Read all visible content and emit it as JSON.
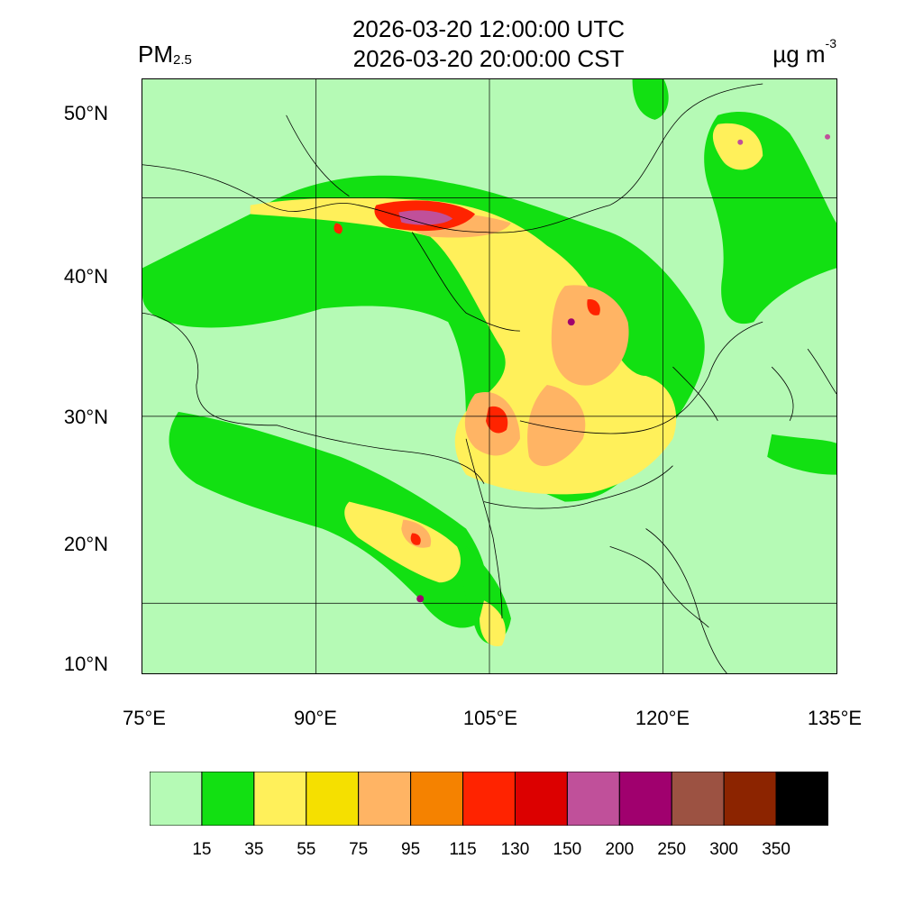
{
  "header": {
    "time_utc": "2026-03-20 12:00:00 UTC",
    "time_local": "2026-03-20 20:00:00 CST",
    "variable_main": "PM",
    "variable_sub": "2.5",
    "unit_main": "µg m",
    "unit_exp": "-3"
  },
  "axes": {
    "lat_labels": [
      "50°N",
      "40°N",
      "30°N",
      "20°N",
      "10°N"
    ],
    "lon_labels": [
      "75°E",
      "90°E",
      "105°E",
      "120°E",
      "135°E"
    ]
  },
  "colorbar": {
    "colors": [
      "#b5fab5",
      "#12e012",
      "#fff05a",
      "#f5e000",
      "#ffb464",
      "#f58200",
      "#ff2300",
      "#dc0000",
      "#c0509a",
      "#a0006e",
      "#9c5242",
      "#8c2400",
      "#000000"
    ],
    "labels": [
      "15",
      "35",
      "55",
      "75",
      "95",
      "115",
      "130",
      "150",
      "200",
      "250",
      "300",
      "350"
    ]
  },
  "map_colors": {
    "background": "#b5fab5",
    "border_line": "#000000"
  }
}
